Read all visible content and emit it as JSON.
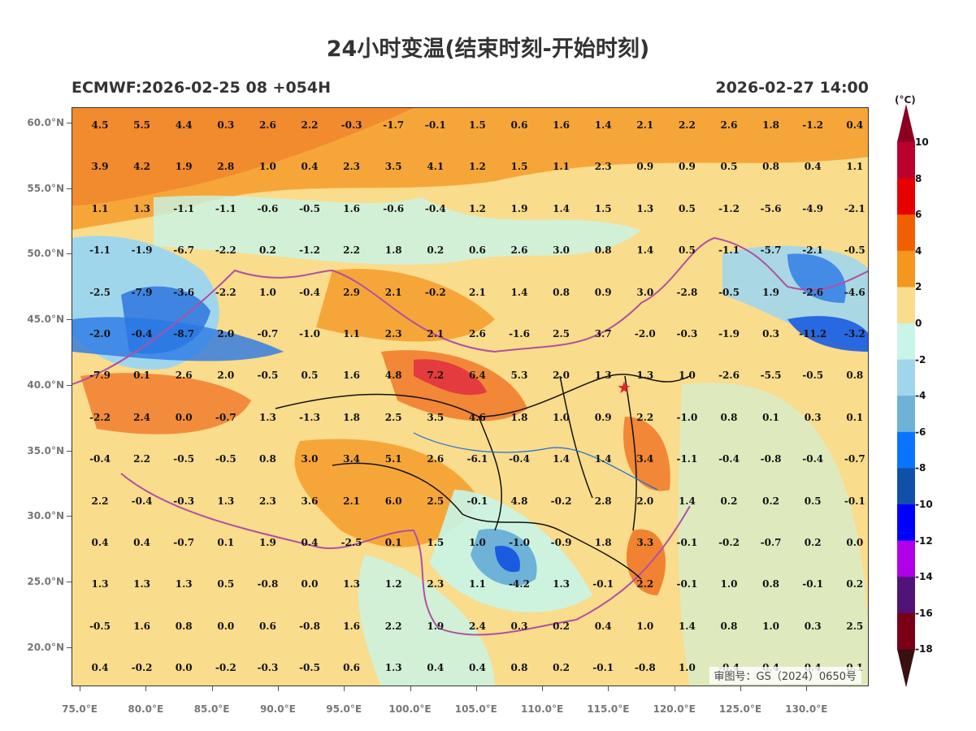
{
  "title": "24小时变温(结束时刻-开始时刻)",
  "model_run": "ECMWF:2026-02-25 08 +054H",
  "valid_time": "2026-02-27 14:00",
  "approval_number": "审图号：GS（2024）0650号",
  "capital_marker_icon": "red-star",
  "lat_labels": [
    "60.0°N",
    "55.0°N",
    "50.0°N",
    "45.0°N",
    "40.0°N",
    "35.0°N",
    "30.0°N",
    "25.0°N",
    "20.0°N"
  ],
  "lon_labels": [
    "75.0°E",
    "80.0°E",
    "85.0°E",
    "90.0°E",
    "95.0°E",
    "100.0°E",
    "105.0°E",
    "110.0°E",
    "115.0°E",
    "120.0°E",
    "125.0°E",
    "130.0°E"
  ],
  "colorbar": {
    "unit": "(°C)",
    "levels": [
      "10",
      "8",
      "6",
      "4",
      "2",
      "0",
      "-2",
      "-4",
      "-6",
      "-8",
      "-10",
      "-12",
      "-14",
      "-16",
      "-18"
    ],
    "colors": [
      "#8b0020",
      "#bb0030",
      "#e60000",
      "#f06000",
      "#f5961e",
      "#f9dc8c",
      "#c8f5e8",
      "#a0d6ec",
      "#6eb2d8",
      "#0a73ff",
      "#1050a8",
      "#0000ff",
      "#b000e8",
      "#501478",
      "#7a0018",
      "#3a1010"
    ]
  },
  "grid_values": [
    [
      "4.5",
      "5.5",
      "4.4",
      "0.3",
      "2.6",
      "2.2",
      "-0.3",
      "-1.7",
      "-0.1",
      "1.5",
      "0.6",
      "1.6",
      "1.4",
      "2.1",
      "2.2",
      "2.6",
      "1.8",
      "-1.2",
      "0.4"
    ],
    [
      "3.9",
      "4.2",
      "1.9",
      "2.8",
      "1.0",
      "0.4",
      "2.3",
      "3.5",
      "4.1",
      "1.2",
      "1.5",
      "1.1",
      "2.3",
      "0.9",
      "0.9",
      "0.5",
      "0.8",
      "0.4",
      "1.1"
    ],
    [
      "1.1",
      "1.3",
      "-1.1",
      "-1.1",
      "-0.6",
      "-0.5",
      "1.6",
      "-0.6",
      "-0.4",
      "1.2",
      "1.9",
      "1.4",
      "1.5",
      "1.3",
      "0.5",
      "-1.2",
      "-5.6",
      "-4.9",
      "-2.1"
    ],
    [
      "-1.1",
      "-1.9",
      "-6.7",
      "-2.2",
      "0.2",
      "-1.2",
      "2.2",
      "1.8",
      "0.2",
      "0.6",
      "2.6",
      "3.0",
      "0.8",
      "1.4",
      "0.5",
      "-1.1",
      "-5.7",
      "-2.1",
      "-0.5"
    ],
    [
      "-2.5",
      "-7.9",
      "-3.6",
      "-2.2",
      "1.0",
      "-0.4",
      "2.9",
      "2.1",
      "-0.2",
      "2.1",
      "1.4",
      "0.8",
      "0.9",
      "3.0",
      "-2.8",
      "-0.5",
      "1.9",
      "-2.6",
      "-4.6"
    ],
    [
      "-2.0",
      "-0.4",
      "-8.7",
      "2.0",
      "-0.7",
      "-1.0",
      "1.1",
      "2.3",
      "2.1",
      "2.6",
      "-1.6",
      "2.5",
      "3.7",
      "-2.0",
      "-0.3",
      "-1.9",
      "0.3",
      "-11.2",
      "-3.2"
    ],
    [
      "-7.9",
      "0.1",
      "2.6",
      "2.0",
      "-0.5",
      "0.5",
      "1.6",
      "4.8",
      "7.2",
      "6.4",
      "5.3",
      "2.0",
      "1.3",
      "1.3",
      "1.0",
      "-2.6",
      "-5.5",
      "-0.5",
      "0.8"
    ],
    [
      "-2.2",
      "2.4",
      "0.0",
      "-0.7",
      "1.3",
      "-1.3",
      "1.8",
      "2.5",
      "3.5",
      "4.6",
      "1.8",
      "1.0",
      "0.9",
      "2.2",
      "-1.0",
      "0.8",
      "0.1",
      "0.3",
      "0.1"
    ],
    [
      "-0.4",
      "2.2",
      "-0.5",
      "-0.5",
      "0.8",
      "3.0",
      "3.4",
      "5.1",
      "2.6",
      "-6.1",
      "-0.4",
      "1.4",
      "1.4",
      "3.4",
      "-1.1",
      "-0.4",
      "-0.8",
      "-0.4",
      "-0.7"
    ],
    [
      "2.2",
      "-0.4",
      "-0.3",
      "1.3",
      "2.3",
      "3.6",
      "2.1",
      "6.0",
      "2.5",
      "-0.1",
      "4.8",
      "-0.2",
      "2.8",
      "2.0",
      "1.4",
      "0.2",
      "0.2",
      "0.5",
      "-0.1"
    ],
    [
      "0.4",
      "0.4",
      "-0.7",
      "0.1",
      "1.9",
      "0.4",
      "-2.5",
      "0.1",
      "1.5",
      "1.0",
      "-1.0",
      "-0.9",
      "1.8",
      "3.3",
      "-0.1",
      "-0.2",
      "-0.7",
      "0.2",
      "0.0"
    ],
    [
      "1.3",
      "1.3",
      "1.3",
      "0.5",
      "-0.8",
      "0.0",
      "1.3",
      "1.2",
      "2.3",
      "1.1",
      "-4.2",
      "1.3",
      "-0.1",
      "2.2",
      "-0.1",
      "1.0",
      "0.8",
      "-0.1",
      "0.2"
    ],
    [
      "-0.5",
      "1.6",
      "0.8",
      "0.0",
      "0.6",
      "-0.8",
      "1.6",
      "2.2",
      "1.9",
      "2.4",
      "0.3",
      "0.2",
      "0.4",
      "1.0",
      "1.4",
      "0.8",
      "1.0",
      "0.3",
      "2.5"
    ],
    [
      "0.4",
      "-0.2",
      "0.0",
      "-0.2",
      "-0.3",
      "-0.5",
      "0.6",
      "1.3",
      "0.4",
      "0.4",
      "0.8",
      "0.2",
      "-0.1",
      "-0.8",
      "1.0",
      "-0.4",
      "0.4",
      "0.4",
      "0.1"
    ]
  ]
}
